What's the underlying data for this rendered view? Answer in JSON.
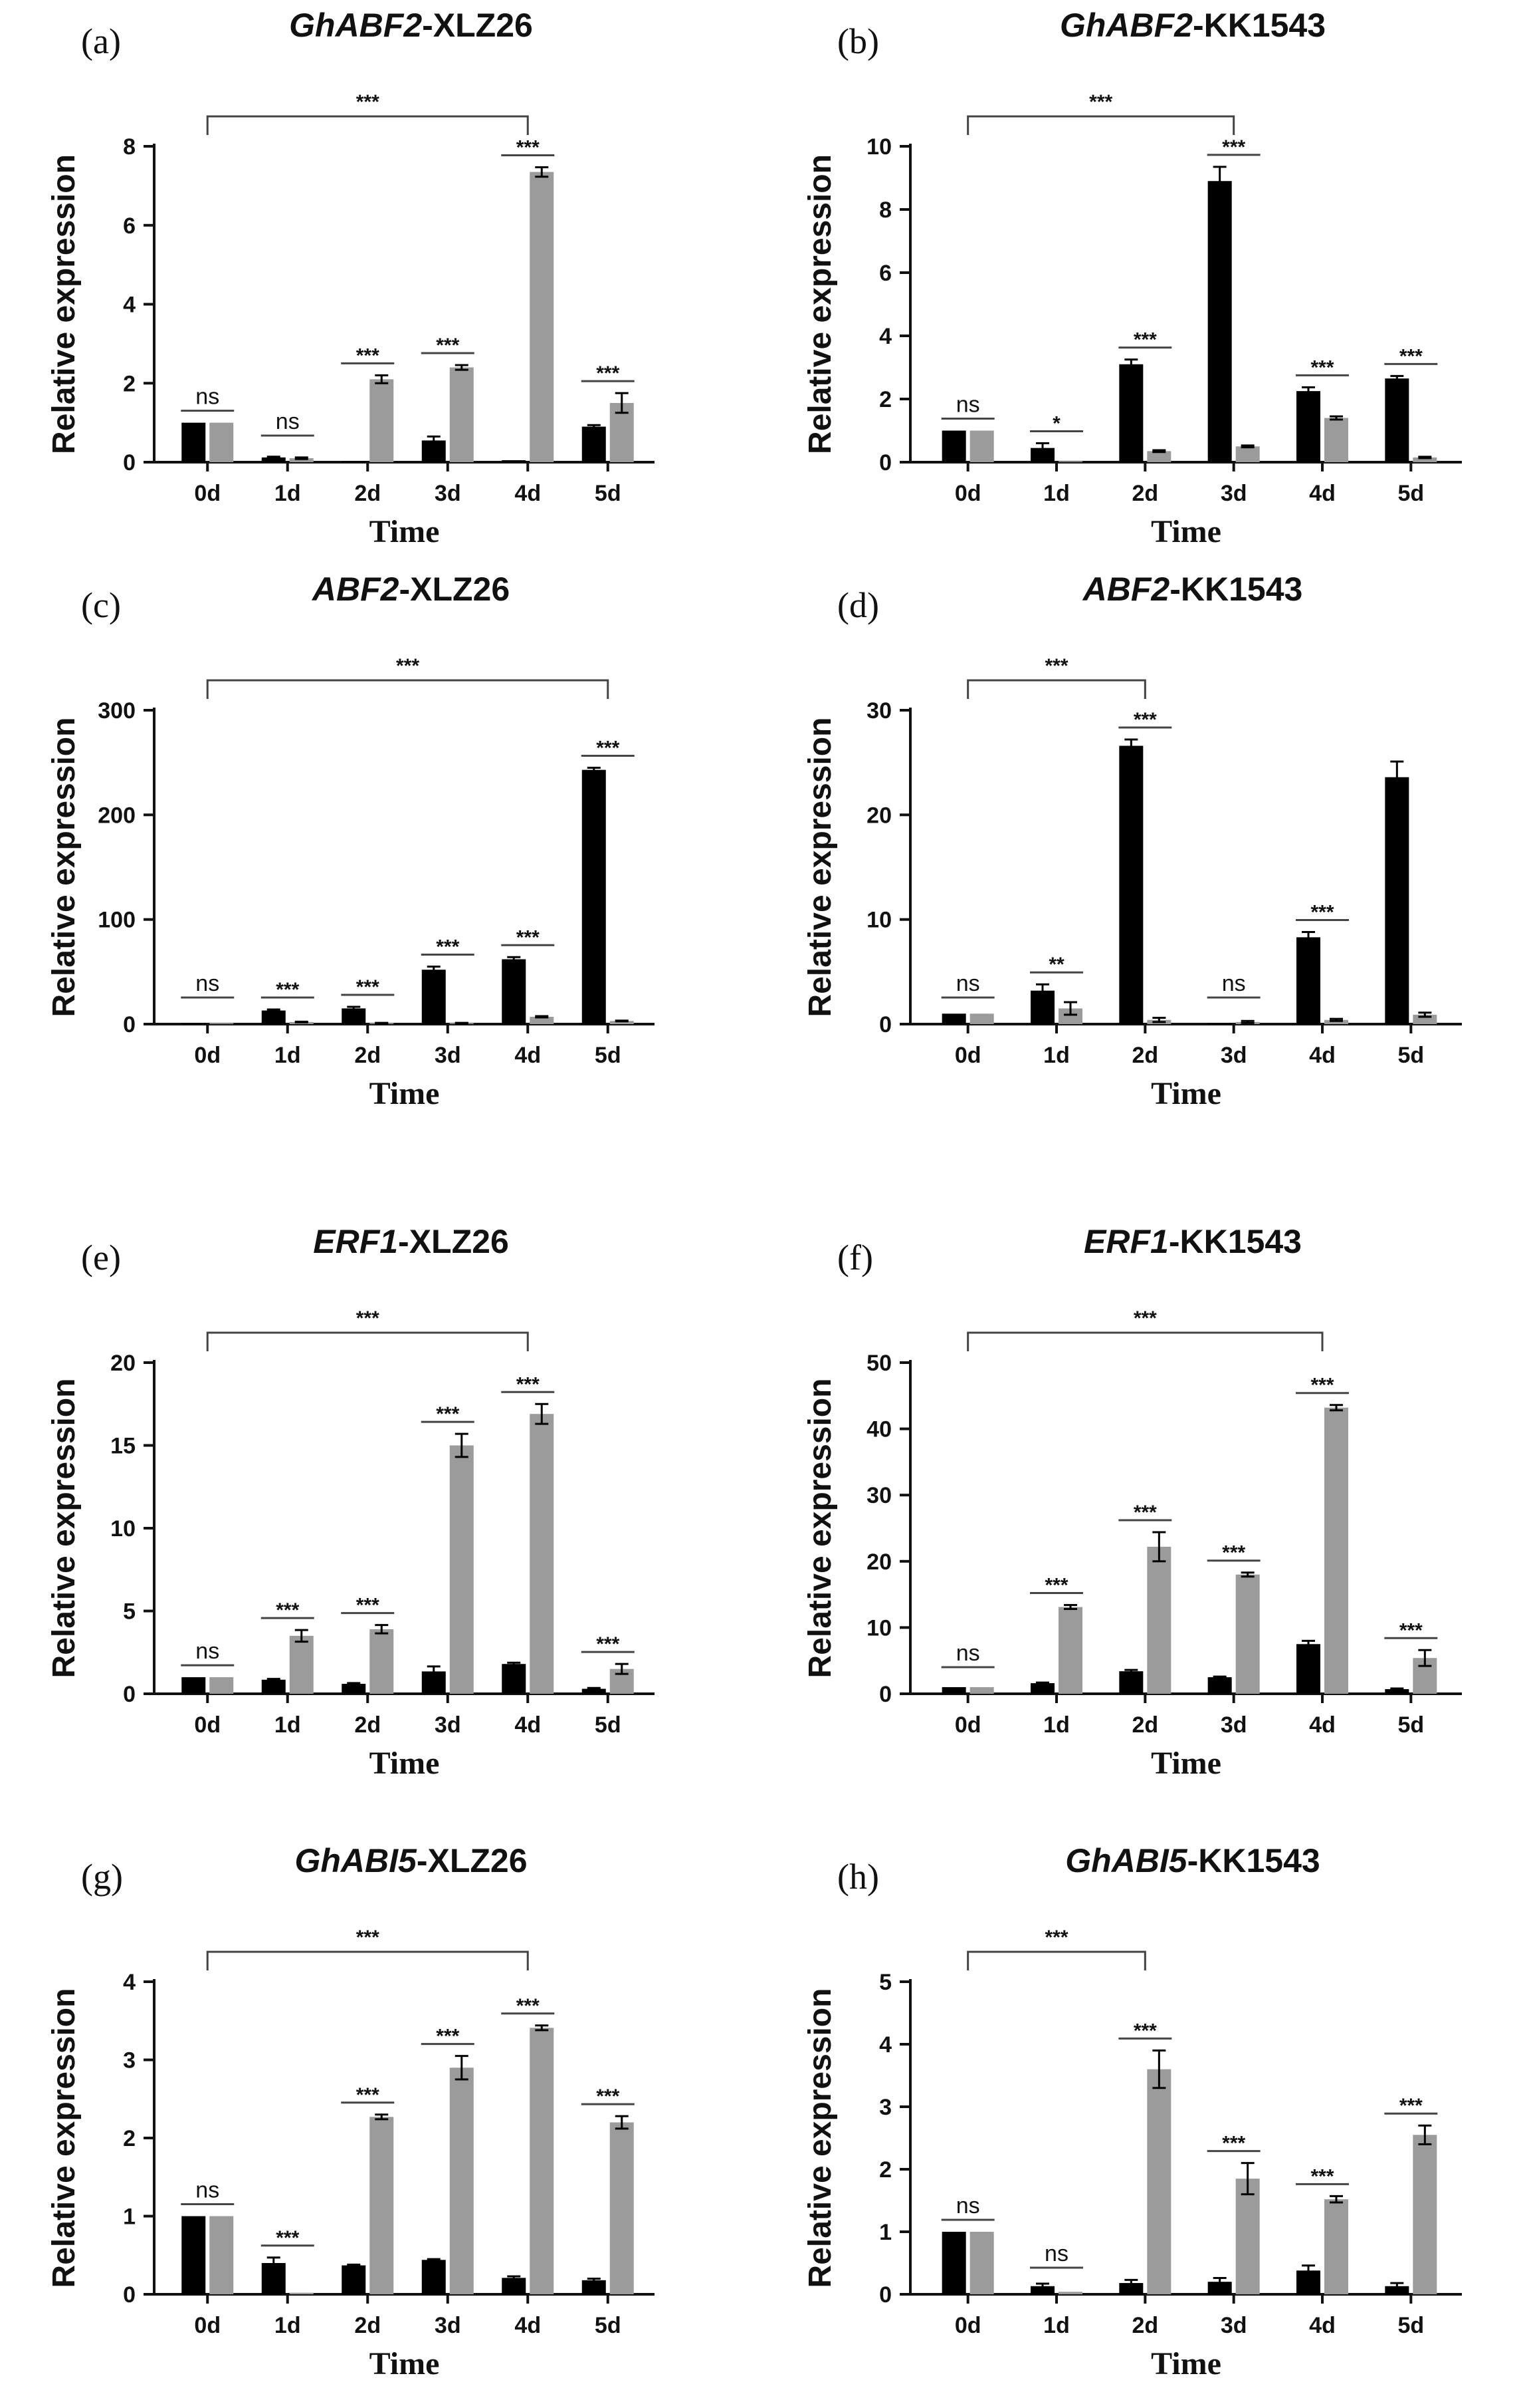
{
  "colors": {
    "series_a": "#000000",
    "series_b": "#9b9b9b",
    "axis": "#111111",
    "bracket": "#444444"
  },
  "chart_data": [
    {
      "type": "bar",
      "letter": "(a)",
      "title_italic": "GhABF2",
      "title_rest": "-XLZ26",
      "xlabel": "Time",
      "ylabel": "Relative expression",
      "categories": [
        "0d",
        "1d",
        "2d",
        "3d",
        "4d",
        "5d"
      ],
      "ylim": [
        0,
        8
      ],
      "yticks": [
        0,
        2,
        4,
        6,
        8
      ],
      "series": [
        {
          "name": "series_a",
          "values": [
            1,
            0.12,
            0.03,
            0.55,
            0.05,
            0.9
          ],
          "errors": [
            0,
            0.02,
            0,
            0.1,
            0,
            0.04
          ]
        },
        {
          "name": "series_b",
          "values": [
            1,
            0.1,
            2.1,
            2.4,
            7.35,
            1.5
          ],
          "errors": [
            0,
            0.02,
            0.1,
            0.06,
            0.12,
            0.25
          ]
        }
      ],
      "significance": [
        "ns",
        "ns",
        "***",
        "***",
        "***",
        "***"
      ],
      "bracket": {
        "from": "0d",
        "to": "4d",
        "label": "***"
      }
    },
    {
      "type": "bar",
      "letter": "(b)",
      "title_italic": "GhABF2",
      "title_rest": "-KK1543",
      "xlabel": "Time",
      "ylabel": "Relative expression",
      "categories": [
        "0d",
        "1d",
        "2d",
        "3d",
        "4d",
        "5d"
      ],
      "ylim": [
        0,
        10
      ],
      "yticks": [
        0,
        2,
        4,
        6,
        8,
        10
      ],
      "series": [
        {
          "name": "series_a",
          "values": [
            1,
            0.45,
            3.1,
            8.9,
            2.25,
            2.65
          ],
          "errors": [
            0,
            0.15,
            0.15,
            0.45,
            0.12,
            0.08
          ]
        },
        {
          "name": "series_b",
          "values": [
            1,
            0.03,
            0.35,
            0.5,
            1.4,
            0.15
          ],
          "errors": [
            0,
            0,
            0.03,
            0.03,
            0.05,
            0.02
          ]
        }
      ],
      "significance": [
        "ns",
        "*",
        "***",
        "***",
        "***",
        "***"
      ],
      "bracket": {
        "from": "0d",
        "to": "3d",
        "label": "***"
      }
    },
    {
      "type": "bar",
      "letter": "(c)",
      "title_italic": "ABF2",
      "title_rest": "-XLZ26",
      "xlabel": "Time",
      "ylabel": "Relative expression",
      "categories": [
        "0d",
        "1d",
        "2d",
        "3d",
        "4d",
        "5d"
      ],
      "ylim": [
        0,
        300
      ],
      "yticks": [
        0,
        100,
        200,
        300
      ],
      "series": [
        {
          "name": "series_a",
          "values": [
            1,
            13,
            15,
            52,
            62,
            243
          ],
          "errors": [
            0,
            1,
            1.5,
            3,
            2,
            2
          ]
        },
        {
          "name": "series_b",
          "values": [
            1,
            2,
            1,
            1,
            7,
            3
          ],
          "errors": [
            0,
            0.3,
            0.2,
            0.2,
            0.6,
            0.3
          ]
        }
      ],
      "significance": [
        "ns",
        "***",
        "***",
        "***",
        "***",
        "***"
      ],
      "bracket": {
        "from": "0d",
        "to": "5d",
        "label": "***"
      }
    },
    {
      "type": "bar",
      "letter": "(d)",
      "title_italic": "ABF2",
      "title_rest": "-KK1543",
      "xlabel": "Time",
      "ylabel": "Relative expression",
      "categories": [
        "0d",
        "1d",
        "2d",
        "3d",
        "4d",
        "5d"
      ],
      "ylim": [
        0,
        30
      ],
      "yticks": [
        0,
        10,
        20,
        30
      ],
      "series": [
        {
          "name": "series_a",
          "values": [
            1,
            3.2,
            26.6,
            0.05,
            8.3,
            23.6
          ],
          "errors": [
            0,
            0.6,
            0.6,
            0,
            0.5,
            1.5
          ]
        },
        {
          "name": "series_b",
          "values": [
            1,
            1.5,
            0.4,
            0.2,
            0.4,
            0.9
          ],
          "errors": [
            0,
            0.6,
            0.2,
            0.1,
            0.1,
            0.2
          ]
        }
      ],
      "significance": [
        "ns",
        "**",
        "***",
        "ns",
        "***",
        ""
      ],
      "bracket": {
        "from": "0d",
        "to": "2d",
        "label": "***"
      }
    },
    {
      "type": "bar",
      "letter": "(e)",
      "title_italic": "ERF1",
      "title_rest": "-XLZ26",
      "xlabel": "Time",
      "ylabel": "Relative expression",
      "categories": [
        "0d",
        "1d",
        "2d",
        "3d",
        "4d",
        "5d"
      ],
      "ylim": [
        0,
        20
      ],
      "yticks": [
        0,
        5,
        10,
        15,
        20
      ],
      "series": [
        {
          "name": "series_a",
          "values": [
            1,
            0.85,
            0.6,
            1.35,
            1.8,
            0.3
          ],
          "errors": [
            0,
            0.05,
            0.05,
            0.3,
            0.08,
            0.05
          ]
        },
        {
          "name": "series_b",
          "values": [
            1,
            3.5,
            3.9,
            15.0,
            16.9,
            1.5
          ],
          "errors": [
            0,
            0.35,
            0.25,
            0.7,
            0.6,
            0.3
          ]
        }
      ],
      "significance": [
        "ns",
        "***",
        "***",
        "***",
        "***",
        "***"
      ],
      "bracket": {
        "from": "0d",
        "to": "4d",
        "label": "***"
      }
    },
    {
      "type": "bar",
      "letter": "(f)",
      "title_italic": "ERF1",
      "title_rest": "-KK1543",
      "xlabel": "Time",
      "ylabel": "Relative expression",
      "categories": [
        "0d",
        "1d",
        "2d",
        "3d",
        "4d",
        "5d"
      ],
      "ylim": [
        0,
        50
      ],
      "yticks": [
        0,
        10,
        20,
        30,
        40,
        50
      ],
      "series": [
        {
          "name": "series_a",
          "values": [
            1,
            1.6,
            3.4,
            2.5,
            7.5,
            0.7
          ],
          "errors": [
            0,
            0.1,
            0.2,
            0.1,
            0.5,
            0.1
          ]
        },
        {
          "name": "series_b",
          "values": [
            1,
            13.1,
            22.2,
            18.0,
            43.2,
            5.4
          ],
          "errors": [
            0,
            0.3,
            2.2,
            0.3,
            0.4,
            1.2
          ]
        }
      ],
      "significance": [
        "ns",
        "***",
        "***",
        "***",
        "***",
        "***"
      ],
      "bracket": {
        "from": "0d",
        "to": "4d",
        "label": "***"
      }
    },
    {
      "type": "bar",
      "letter": "(g)",
      "title_italic": "GhABI5",
      "title_rest": "-XLZ26",
      "xlabel": "Time",
      "ylabel": "Relative expression",
      "categories": [
        "0d",
        "1d",
        "2d",
        "3d",
        "4d",
        "5d"
      ],
      "ylim": [
        0,
        4
      ],
      "yticks": [
        0,
        1,
        2,
        3,
        4
      ],
      "series": [
        {
          "name": "series_a",
          "values": [
            1,
            0.4,
            0.37,
            0.44,
            0.21,
            0.18
          ],
          "errors": [
            0,
            0.07,
            0.01,
            0.01,
            0.02,
            0.02
          ]
        },
        {
          "name": "series_b",
          "values": [
            1,
            0.02,
            2.27,
            2.9,
            3.41,
            2.2
          ],
          "errors": [
            0,
            0,
            0.03,
            0.15,
            0.03,
            0.08
          ]
        }
      ],
      "significance": [
        "ns",
        "***",
        "***",
        "***",
        "***",
        "***"
      ],
      "bracket": {
        "from": "0d",
        "to": "4d",
        "label": "***"
      }
    },
    {
      "type": "bar",
      "letter": "(h)",
      "title_italic": "GhABI5",
      "title_rest": "-KK1543",
      "xlabel": "Time",
      "ylabel": "Relative expression",
      "categories": [
        "0d",
        "1d",
        "2d",
        "3d",
        "4d",
        "5d"
      ],
      "ylim": [
        0,
        5
      ],
      "yticks": [
        0,
        1,
        2,
        3,
        4,
        5
      ],
      "series": [
        {
          "name": "series_a",
          "values": [
            1,
            0.13,
            0.18,
            0.2,
            0.38,
            0.13
          ],
          "errors": [
            0,
            0.04,
            0.05,
            0.06,
            0.08,
            0.05
          ]
        },
        {
          "name": "series_b",
          "values": [
            1,
            0.04,
            3.6,
            1.85,
            1.52,
            2.55
          ],
          "errors": [
            0,
            0,
            0.3,
            0.25,
            0.05,
            0.15
          ]
        }
      ],
      "significance": [
        "ns",
        "ns",
        "***",
        "***",
        "***",
        "***"
      ],
      "bracket": {
        "from": "0d",
        "to": "2d",
        "label": "***"
      }
    }
  ]
}
